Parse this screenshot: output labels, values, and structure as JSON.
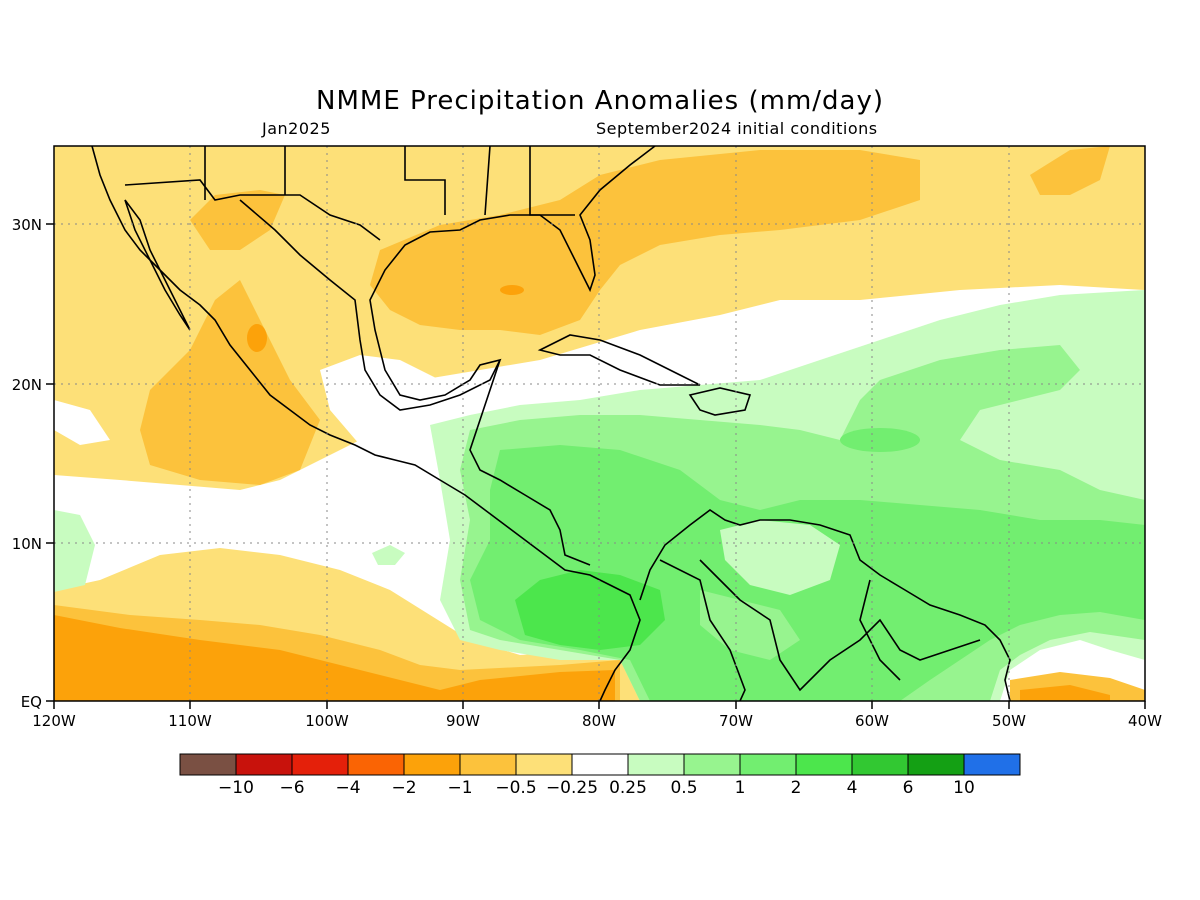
{
  "header": {
    "title": "NMME Precipitation Anomalies (mm/day)",
    "target_month": "Jan2025",
    "init": "September2024 initial conditions"
  },
  "axes": {
    "lat_labels": [
      "EQ",
      "10N",
      "20N",
      "30N"
    ],
    "lon_labels": [
      "120W",
      "110W",
      "100W",
      "90W",
      "80W",
      "70W",
      "60W",
      "50W",
      "40W"
    ]
  },
  "colorbar": {
    "colors": [
      "#7a5043",
      "#c8120c",
      "#e4200a",
      "#fa6404",
      "#fca20a",
      "#fcc23c",
      "#fde078",
      "#ffffff",
      "#c8fcc0",
      "#97f48f",
      "#72ee70",
      "#4ce64c",
      "#32c832",
      "#14a014",
      "#2070e8"
    ],
    "labels": [
      "−10",
      "−6",
      "−4",
      "−2",
      "−1",
      "−0.5",
      "−0.25",
      "0.25",
      "0.5",
      "1",
      "2",
      "4",
      "6",
      "10"
    ]
  },
  "colors": {
    "dry_light": "#fde078",
    "dry_mid": "#fcc23c",
    "dry_strong": "#fca20a",
    "wet_light": "#c8fcc0",
    "wet_mid": "#97f48f",
    "wet_strong": "#72ee70",
    "wet_max": "#4ce64c"
  }
}
